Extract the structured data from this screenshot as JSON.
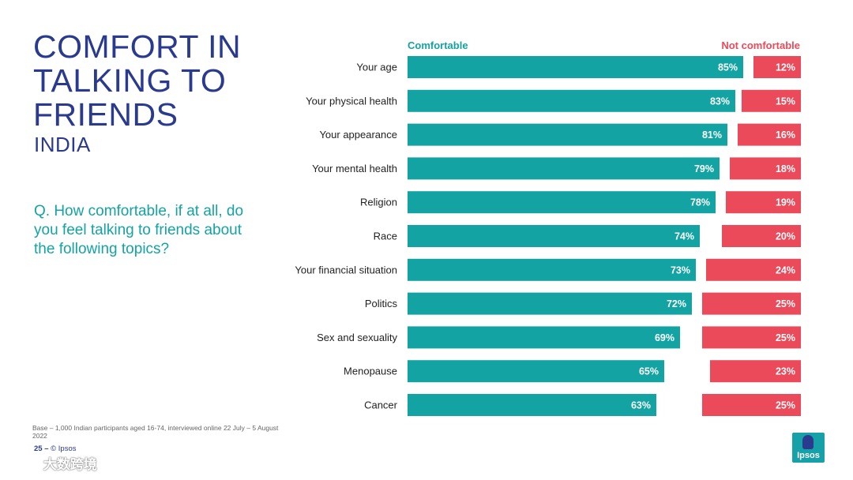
{
  "title_lines": [
    "COMFORT IN",
    "TALKING TO",
    "FRIENDS"
  ],
  "subtitle": "INDIA",
  "question": "Q. How comfortable, if at all, do you feel talking to friends about the following topics?",
  "base_note": "Base – 1,000 Indian participants aged 16-74, interviewed online 22 July – 5 August 2022",
  "footer": {
    "page": "25",
    "sep": "–",
    "copyright": "© Ipsos"
  },
  "logo_text": "Ipsos",
  "watermark": "大数跨境",
  "colors": {
    "comfortable": "#14a3a3",
    "not_comfortable": "#ea4a5a"
  },
  "chart_data": {
    "type": "bar",
    "orientation": "horizontal",
    "title": "",
    "categories": [
      "Your age",
      "Your physical health",
      "Your appearance",
      "Your mental health",
      "Religion",
      "Race",
      "Your financial situation",
      "Politics",
      "Sex and sexuality",
      "Menopause",
      "Cancer"
    ],
    "series": [
      {
        "name": "Comfortable",
        "values": [
          85,
          83,
          81,
          79,
          78,
          74,
          73,
          72,
          69,
          65,
          63
        ]
      },
      {
        "name": "Not comfortable",
        "values": [
          12,
          15,
          16,
          18,
          19,
          20,
          24,
          25,
          25,
          23,
          25
        ]
      }
    ],
    "value_suffix": "%",
    "xlim": [
      0,
      100
    ]
  }
}
